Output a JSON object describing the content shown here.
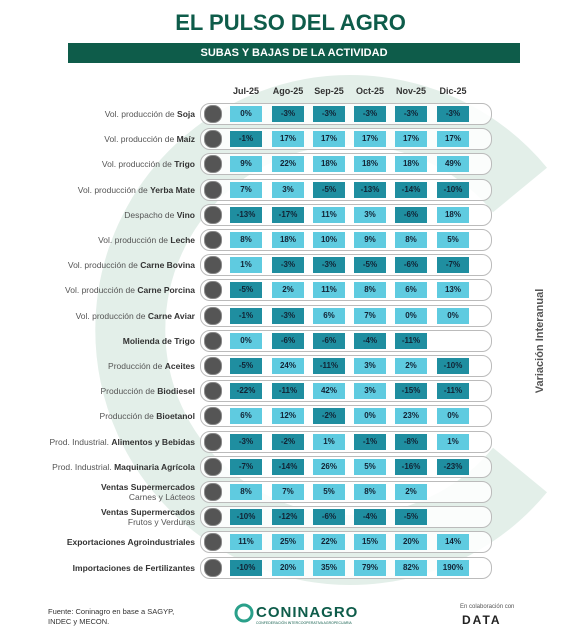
{
  "header": {
    "title": "EL PULSO DEL AGRO",
    "subtitle": "SUBAS Y BAJAS DE LA ACTIVIDAD"
  },
  "columns": [
    "Jul-25",
    "Ago-25",
    "Sep-25",
    "Oct-25",
    "Nov-25",
    "Dic-25"
  ],
  "rows": [
    {
      "prefix": "Vol. producción de",
      "bold": "Soja",
      "values": [
        "0%",
        "-3%",
        "-3%",
        "-3%",
        "-3%",
        "-3%"
      ]
    },
    {
      "prefix": "Vol. producción de",
      "bold": "Maíz",
      "values": [
        "-1%",
        "17%",
        "17%",
        "17%",
        "17%",
        "17%"
      ]
    },
    {
      "prefix": "Vol. producción de",
      "bold": "Trigo",
      "values": [
        "9%",
        "22%",
        "18%",
        "18%",
        "18%",
        "49%"
      ]
    },
    {
      "prefix": "Vol. producción de",
      "bold": "Yerba Mate",
      "values": [
        "7%",
        "3%",
        "-5%",
        "-13%",
        "-14%",
        "-10%"
      ]
    },
    {
      "prefix": "Despacho de",
      "bold": "Vino",
      "values": [
        "-13%",
        "-17%",
        "11%",
        "3%",
        "-6%",
        "18%"
      ]
    },
    {
      "prefix": "Vol. producción de",
      "bold": "Leche",
      "values": [
        "8%",
        "18%",
        "10%",
        "9%",
        "8%",
        "5%"
      ]
    },
    {
      "prefix": "Vol. producción de",
      "bold": "Carne Bovina",
      "values": [
        "1%",
        "-3%",
        "-3%",
        "-5%",
        "-6%",
        "-7%"
      ]
    },
    {
      "prefix": "Vol. producción de",
      "bold": "Carne Porcina",
      "values": [
        "-5%",
        "2%",
        "11%",
        "8%",
        "6%",
        "13%"
      ]
    },
    {
      "prefix": "Vol. producción de",
      "bold": "Carne Aviar",
      "values": [
        "-1%",
        "-3%",
        "6%",
        "7%",
        "0%",
        "0%"
      ]
    },
    {
      "bold": "Molienda de Trigo",
      "values": [
        "0%",
        "-6%",
        "-6%",
        "-4%",
        "-11%",
        null
      ]
    },
    {
      "prefix": "Producción de",
      "bold": "Aceites",
      "values": [
        "-5%",
        "24%",
        "-11%",
        "3%",
        "2%",
        "-10%"
      ]
    },
    {
      "prefix": "Producción de",
      "bold": "Biodiesel",
      "values": [
        "-22%",
        "-11%",
        "42%",
        "3%",
        "-15%",
        "-11%"
      ]
    },
    {
      "prefix": "Producción de",
      "bold": "Bioetanol",
      "values": [
        "6%",
        "12%",
        "-2%",
        "0%",
        "23%",
        "0%"
      ]
    },
    {
      "prefix": "Prod. Industrial.",
      "bold": "Alimentos y Bebidas",
      "values": [
        "-3%",
        "-2%",
        "1%",
        "-1%",
        "-8%",
        "1%"
      ]
    },
    {
      "prefix": "Prod. Industrial.",
      "bold": "Maquinaria Agrícola",
      "values": [
        "-7%",
        "-14%",
        "26%",
        "5%",
        "-16%",
        "-23%"
      ]
    },
    {
      "bold": "Ventas Supermercados",
      "sub": "Carnes y Lácteos",
      "values": [
        "8%",
        "7%",
        "5%",
        "8%",
        "2%",
        null
      ]
    },
    {
      "bold": "Ventas Supermercados",
      "sub": "Frutos y Verduras",
      "values": [
        "-10%",
        "-12%",
        "-6%",
        "-4%",
        "-5%",
        null
      ]
    },
    {
      "bold": "Exportaciones Agroindustriales",
      "values": [
        "11%",
        "25%",
        "22%",
        "15%",
        "20%",
        "14%"
      ]
    },
    {
      "bold": "Importaciones de Fertilizantes",
      "values": [
        "-10%",
        "20%",
        "35%",
        "79%",
        "82%",
        "190%"
      ]
    }
  ],
  "side_label": "Variación Interanual",
  "footer": {
    "source": "Fuente: Coninagro en base a SAGYP, INDEC y MECON.",
    "logo": "CONINAGRO",
    "logo_sub": "CONFEDERACIÓN INTERCOOPERATIVA AGROPECUARIA",
    "collab": "En colaboración con",
    "data_logo": "DATA"
  }
}
